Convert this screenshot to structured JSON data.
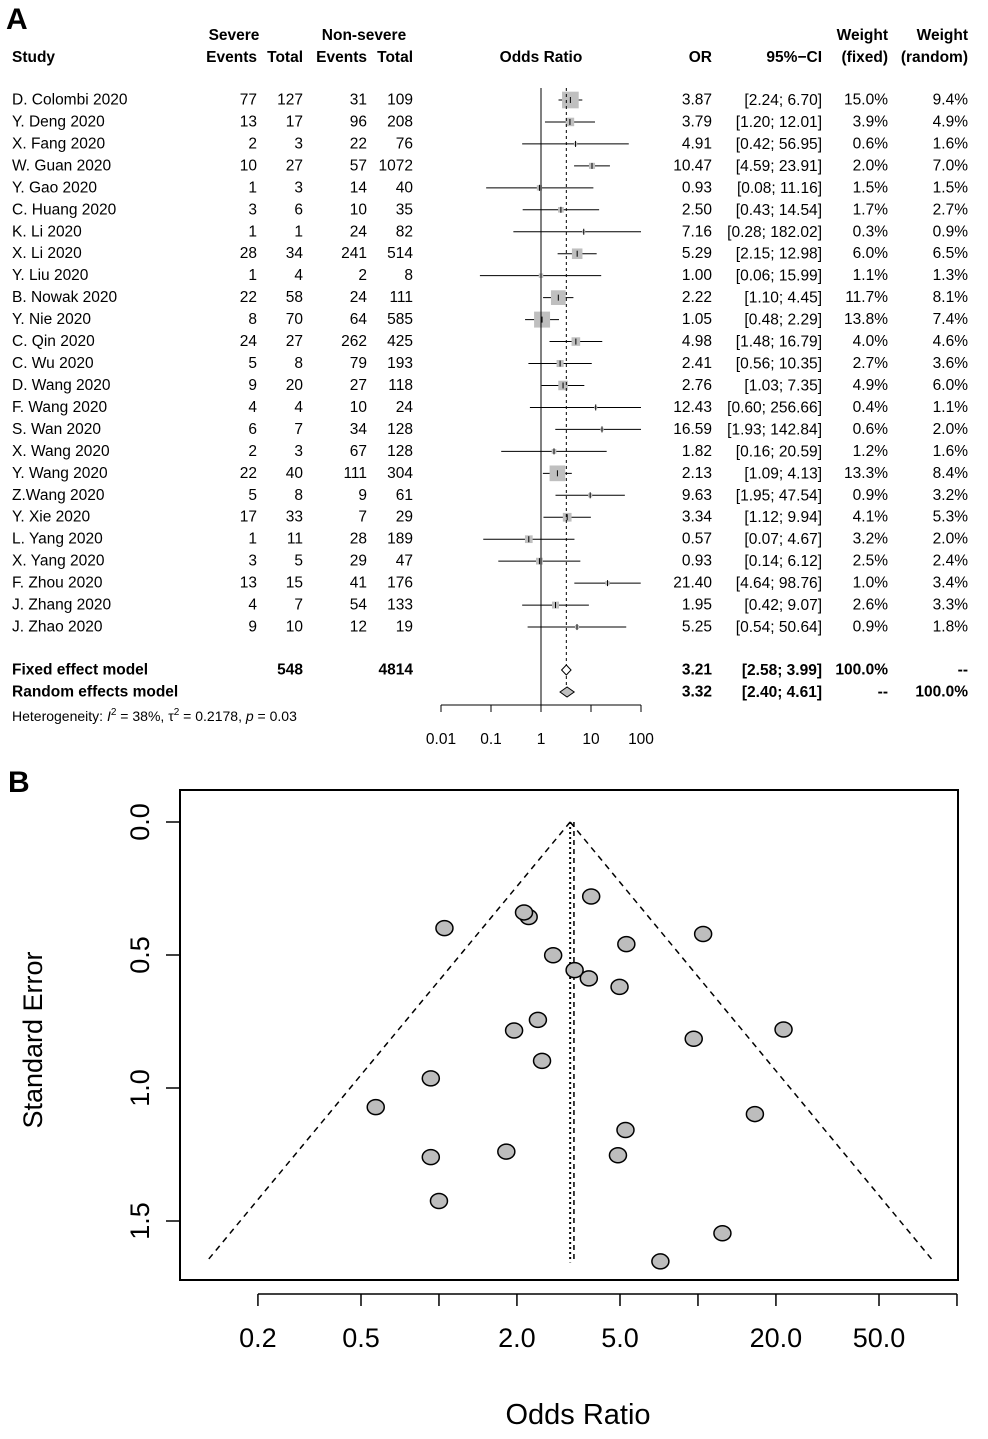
{
  "panels": {
    "a": "A",
    "b": "B"
  },
  "forest": {
    "headers": {
      "study": "Study",
      "severe": "Severe",
      "nonsevere": "Non-severe",
      "events": "Events",
      "total": "Total",
      "odds_ratio": "Odds Ratio",
      "or": "OR",
      "ci": "95%−CI",
      "weight": "Weight",
      "fixed": "(fixed)",
      "random": "(random)"
    },
    "studies": [
      {
        "name": "D. Colombi 2020",
        "se": "77",
        "st": "127",
        "ne": "31",
        "nt": "109",
        "or": "3.87",
        "lo": "2.24",
        "hi": "6.70",
        "wf": "15.0%",
        "wr": "9.4%"
      },
      {
        "name": "Y. Deng 2020",
        "se": "13",
        "st": "17",
        "ne": "96",
        "nt": "208",
        "or": "3.79",
        "lo": "1.20",
        "hi": "12.01",
        "wf": "3.9%",
        "wr": "4.9%"
      },
      {
        "name": "X. Fang 2020",
        "se": "2",
        "st": "3",
        "ne": "22",
        "nt": "76",
        "or": "4.91",
        "lo": "0.42",
        "hi": "56.95",
        "wf": "0.6%",
        "wr": "1.6%"
      },
      {
        "name": "W. Guan 2020",
        "se": "10",
        "st": "27",
        "ne": "57",
        "nt": "1072",
        "or": "10.47",
        "lo": "4.59",
        "hi": "23.91",
        "wf": "2.0%",
        "wr": "7.0%"
      },
      {
        "name": "Y. Gao 2020",
        "se": "1",
        "st": "3",
        "ne": "14",
        "nt": "40",
        "or": "0.93",
        "lo": "0.08",
        "hi": "11.16",
        "wf": "1.5%",
        "wr": "1.5%"
      },
      {
        "name": "C. Huang 2020",
        "se": "3",
        "st": "6",
        "ne": "10",
        "nt": "35",
        "or": "2.50",
        "lo": "0.43",
        "hi": "14.54",
        "wf": "1.7%",
        "wr": "2.7%"
      },
      {
        "name": "K. Li 2020",
        "se": "1",
        "st": "1",
        "ne": "24",
        "nt": "82",
        "or": "7.16",
        "lo": "0.28",
        "hi": "182.02",
        "wf": "0.3%",
        "wr": "0.9%"
      },
      {
        "name": "X. Li 2020",
        "se": "28",
        "st": "34",
        "ne": "241",
        "nt": "514",
        "or": "5.29",
        "lo": "2.15",
        "hi": "12.98",
        "wf": "6.0%",
        "wr": "6.5%"
      },
      {
        "name": "Y. Liu 2020",
        "se": "1",
        "st": "4",
        "ne": "2",
        "nt": "8",
        "or": "1.00",
        "lo": "0.06",
        "hi": "15.99",
        "wf": "1.1%",
        "wr": "1.3%"
      },
      {
        "name": "B. Nowak 2020",
        "se": "22",
        "st": "58",
        "ne": "24",
        "nt": "111",
        "or": "2.22",
        "lo": "1.10",
        "hi": "4.45",
        "wf": "11.7%",
        "wr": "8.1%"
      },
      {
        "name": "Y. Nie 2020",
        "se": "8",
        "st": "70",
        "ne": "64",
        "nt": "585",
        "or": "1.05",
        "lo": "0.48",
        "hi": "2.29",
        "wf": "13.8%",
        "wr": "7.4%"
      },
      {
        "name": "C. Qin 2020",
        "se": "24",
        "st": "27",
        "ne": "262",
        "nt": "425",
        "or": "4.98",
        "lo": "1.48",
        "hi": "16.79",
        "wf": "4.0%",
        "wr": "4.6%"
      },
      {
        "name": "C. Wu 2020",
        "se": "5",
        "st": "8",
        "ne": "79",
        "nt": "193",
        "or": "2.41",
        "lo": "0.56",
        "hi": "10.35",
        "wf": "2.7%",
        "wr": "3.6%"
      },
      {
        "name": "D. Wang 2020",
        "se": "9",
        "st": "20",
        "ne": "27",
        "nt": "118",
        "or": "2.76",
        "lo": "1.03",
        "hi": "7.35",
        "wf": "4.9%",
        "wr": "6.0%"
      },
      {
        "name": "F. Wang 2020",
        "se": "4",
        "st": "4",
        "ne": "10",
        "nt": "24",
        "or": "12.43",
        "lo": "0.60",
        "hi": "256.66",
        "wf": "0.4%",
        "wr": "1.1%"
      },
      {
        "name": "S. Wan 2020",
        "se": "6",
        "st": "7",
        "ne": "34",
        "nt": "128",
        "or": "16.59",
        "lo": "1.93",
        "hi": "142.84",
        "wf": "0.6%",
        "wr": "2.0%"
      },
      {
        "name": "X. Wang 2020",
        "se": "2",
        "st": "3",
        "ne": "67",
        "nt": "128",
        "or": "1.82",
        "lo": "0.16",
        "hi": "20.59",
        "wf": "1.2%",
        "wr": "1.6%"
      },
      {
        "name": "Y. Wang 2020",
        "se": "22",
        "st": "40",
        "ne": "111",
        "nt": "304",
        "or": "2.13",
        "lo": "1.09",
        "hi": "4.13",
        "wf": "13.3%",
        "wr": "8.4%"
      },
      {
        "name": "Z.Wang 2020",
        "se": "5",
        "st": "8",
        "ne": "9",
        "nt": "61",
        "or": "9.63",
        "lo": "1.95",
        "hi": "47.54",
        "wf": "0.9%",
        "wr": "3.2%"
      },
      {
        "name": "Y. Xie 2020",
        "se": "17",
        "st": "33",
        "ne": "7",
        "nt": "29",
        "or": "3.34",
        "lo": "1.12",
        "hi": "9.94",
        "wf": "4.1%",
        "wr": "5.3%"
      },
      {
        "name": "L. Yang 2020",
        "se": "1",
        "st": "11",
        "ne": "28",
        "nt": "189",
        "or": "0.57",
        "lo": "0.07",
        "hi": "4.67",
        "wf": "3.2%",
        "wr": "2.0%"
      },
      {
        "name": "X. Yang 2020",
        "se": "3",
        "st": "5",
        "ne": "29",
        "nt": "47",
        "or": "0.93",
        "lo": "0.14",
        "hi": "6.12",
        "wf": "2.5%",
        "wr": "2.4%"
      },
      {
        "name": " F. Zhou 2020",
        "se": "13",
        "st": "15",
        "ne": "41",
        "nt": "176",
        "or": "21.40",
        "lo": "4.64",
        "hi": "98.76",
        "wf": "1.0%",
        "wr": "3.4%"
      },
      {
        "name": "J. Zhang 2020",
        "se": "4",
        "st": "7",
        "ne": "54",
        "nt": "133",
        "or": "1.95",
        "lo": "0.42",
        "hi": "9.07",
        "wf": "2.6%",
        "wr": "3.3%"
      },
      {
        "name": "J. Zhao 2020",
        "se": "9",
        "st": "10",
        "ne": "12",
        "nt": "19",
        "or": "5.25",
        "lo": "0.54",
        "hi": "50.64",
        "wf": "0.9%",
        "wr": "1.8%"
      }
    ],
    "fixed": {
      "name": "Fixed effect model",
      "st": "548",
      "nt": "4814",
      "or": "3.21",
      "lo": "2.58",
      "hi": "3.99",
      "wf": "100.0%",
      "wr": "--"
    },
    "random": {
      "name": "Random effects model",
      "or": "3.32",
      "lo": "2.40",
      "hi": "4.61",
      "wf": "--",
      "wr": "100.0%"
    },
    "heterogeneity": {
      "label": "Heterogeneity: ",
      "i2_sym": "I",
      "i2": "38%",
      "tau_sym": "τ",
      "tau2": "0.2178",
      "p_sym": "p",
      "p": "0.03"
    },
    "axis_ticks": [
      0.01,
      0.1,
      1,
      10,
      100
    ],
    "axis_labels": [
      "0.01",
      "0.1",
      "1",
      "10",
      "100"
    ]
  },
  "chart_data": [
    {
      "type": "forest",
      "title": "A",
      "xlabel": "Odds Ratio",
      "xscale": "log",
      "xlim": [
        0.01,
        100
      ],
      "null_value": 1,
      "fixed_estimate": 3.21,
      "random_estimate": 3.32
    },
    {
      "type": "scatter",
      "title": "B",
      "xlabel": "Odds Ratio",
      "ylabel": "Standard Error",
      "xscale": "log",
      "x_ticks": [
        0.2,
        0.5,
        1,
        2,
        5,
        10,
        20,
        50,
        100
      ],
      "x_tick_labels": [
        "0.2",
        "0.5",
        "",
        "2.0",
        "5.0",
        "",
        "20.0",
        "50.0",
        ""
      ],
      "y_ticks": [
        0,
        0.5,
        1,
        1.5
      ],
      "y_tick_labels": [
        "0.0",
        "0.5",
        "1.0",
        "1.5"
      ],
      "ylim": [
        0,
        1.65
      ],
      "y_reversed": true,
      "center_fixed": 3.21,
      "center_random": 3.32,
      "points": [
        {
          "or": 3.87,
          "se": 0.28
        },
        {
          "or": 3.79,
          "se": 0.588
        },
        {
          "or": 4.91,
          "se": 1.253
        },
        {
          "or": 10.47,
          "se": 0.421
        },
        {
          "or": 0.93,
          "se": 1.26
        },
        {
          "or": 2.5,
          "se": 0.898
        },
        {
          "or": 7.16,
          "se": 1.652
        },
        {
          "or": 5.29,
          "se": 0.459
        },
        {
          "or": 1.0,
          "se": 1.425
        },
        {
          "or": 2.22,
          "se": 0.357
        },
        {
          "or": 1.05,
          "se": 0.399
        },
        {
          "or": 4.98,
          "se": 0.62
        },
        {
          "or": 2.41,
          "se": 0.744
        },
        {
          "or": 2.76,
          "se": 0.501
        },
        {
          "or": 12.43,
          "se": 1.546
        },
        {
          "or": 16.59,
          "se": 1.098
        },
        {
          "or": 1.82,
          "se": 1.239
        },
        {
          "or": 2.13,
          "se": 0.34
        },
        {
          "or": 9.63,
          "se": 0.815
        },
        {
          "or": 3.34,
          "se": 0.557
        },
        {
          "or": 0.57,
          "se": 1.072
        },
        {
          "or": 0.93,
          "se": 0.964
        },
        {
          "or": 21.4,
          "se": 0.78
        },
        {
          "or": 1.95,
          "se": 0.784
        },
        {
          "or": 5.25,
          "se": 1.158
        }
      ]
    }
  ],
  "colors": {
    "square": "#bfbfbf",
    "point": "#bdbdbd",
    "line": "#000000"
  }
}
